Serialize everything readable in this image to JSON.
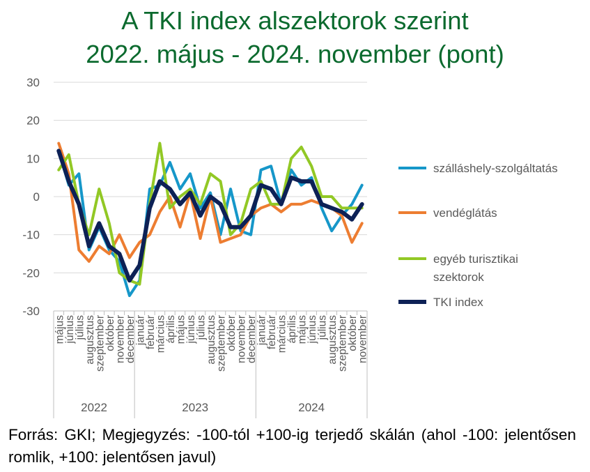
{
  "title_lines": [
    "A TKI index alszektorok szerint",
    "2022. május - 2024. november (pont)"
  ],
  "footnote": "Forrás: GKI; Megjegyzés: -100-tól +100-ig terjedő skálán (ahol -100: jelentősen romlik, +100: jelentősen javul)",
  "colors": {
    "title": "#0b6a2e",
    "szallashely": "#1697c9",
    "vendeglatas": "#ed7d31",
    "egyeb": "#92c825",
    "tki": "#0d2156"
  },
  "chart_data": {
    "type": "line",
    "title": "A TKI index alszektorok szerint 2022. május - 2024. november (pont)",
    "xlabel": "",
    "ylabel": "",
    "ylim": [
      -30,
      30
    ],
    "yticks": [
      30,
      20,
      10,
      0,
      -10,
      -20,
      -30
    ],
    "grid": "horizontal",
    "legend_position": "right",
    "categories": [
      "május",
      "június",
      "július",
      "augusztus",
      "szeptember",
      "október",
      "november",
      "december",
      "január",
      "február",
      "március",
      "április",
      "május",
      "június",
      "július",
      "augusztus",
      "szeptember",
      "október",
      "november",
      "december",
      "január",
      "február",
      "március",
      "április",
      "május",
      "június",
      "július",
      "augusztus",
      "szeptember",
      "október",
      "november"
    ],
    "year_groups": [
      {
        "label": "2022",
        "count": 8
      },
      {
        "label": "2023",
        "count": 12
      },
      {
        "label": "2024",
        "count": 11
      }
    ],
    "series": [
      {
        "name": "szálláshely-szolgáltatás",
        "color_key": "szallashely",
        "width": 4,
        "values": [
          12,
          3,
          6,
          -14,
          -8,
          -14,
          -17,
          -26,
          -22,
          2,
          3,
          9,
          2,
          6,
          -3,
          1,
          -10,
          2,
          -9,
          -10,
          7,
          8,
          -2,
          7,
          3,
          5,
          -3,
          -9,
          -5,
          -2,
          3
        ]
      },
      {
        "name": "vendéglátás",
        "color_key": "vendeglatas",
        "width": 4,
        "values": [
          14,
          6,
          -14,
          -17,
          -13,
          -15,
          -10,
          -16,
          -12,
          -10,
          -4,
          0,
          -8,
          1,
          -11,
          0,
          -12,
          -11,
          -10,
          -5,
          -3,
          -2,
          -4,
          -2,
          -2,
          -1,
          -2,
          -3,
          -5,
          -12,
          -7
        ]
      },
      {
        "name": "egyéb turisztikai szektorok",
        "color_key": "egyeb",
        "width": 4,
        "values": [
          7,
          11,
          -2,
          -10,
          2,
          -7,
          -20,
          -22,
          -23,
          -2,
          14,
          -3,
          0,
          2,
          -2,
          6,
          4,
          -10,
          -7,
          2,
          4,
          -2,
          -2,
          10,
          13,
          8,
          0,
          0,
          -3,
          -3,
          -3
        ]
      },
      {
        "name": "TKI index",
        "color_key": "tki",
        "width": 6,
        "values": [
          12,
          4,
          -2,
          -13,
          -7,
          -13,
          -15,
          -22,
          -18,
          -3,
          4,
          2,
          -2,
          1,
          -5,
          0,
          -2,
          -8,
          -8,
          -5,
          3,
          2,
          -2,
          5,
          4,
          4,
          -2,
          -3,
          -4,
          -6,
          -2
        ]
      }
    ]
  }
}
